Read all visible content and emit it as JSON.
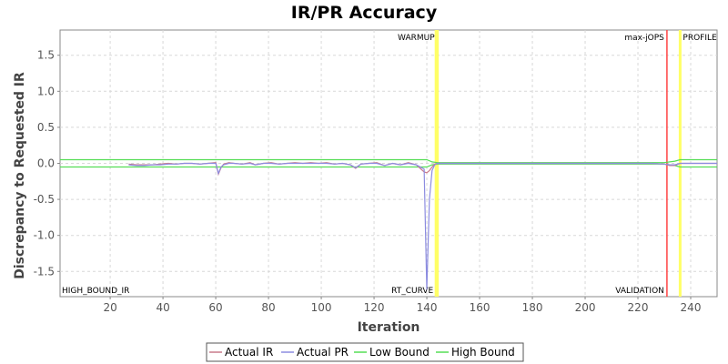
{
  "chart_data": {
    "type": "line",
    "title": "IR/PR Accuracy",
    "xlabel": "Iteration",
    "ylabel": "Discrepancy to Requested IR",
    "xlim": [
      1,
      250
    ],
    "ylim": [
      -1.85,
      1.85
    ],
    "xticks": [
      20,
      40,
      60,
      80,
      100,
      120,
      140,
      160,
      180,
      200,
      220,
      240
    ],
    "yticks": [
      1.5,
      1.0,
      0.5,
      0.0,
      -0.5,
      -1.0,
      -1.5
    ],
    "ytick_labels": [
      "1.5",
      "1.0",
      "0.5",
      "0.0",
      "-0.5",
      "-1.0",
      "-1.5"
    ],
    "grid": true,
    "legend_placement": "bottom",
    "series": [
      {
        "name": "Actual IR",
        "color": "#c97a8a",
        "x": [
          27,
          30,
          33,
          36,
          39,
          42,
          45,
          48,
          51,
          54,
          57,
          60,
          61,
          62,
          63,
          65,
          67,
          70,
          73,
          75,
          78,
          81,
          84,
          87,
          90,
          93,
          96,
          99,
          102,
          105,
          108,
          111,
          113,
          115,
          118,
          121,
          124,
          127,
          130,
          133,
          136,
          139,
          140,
          141,
          142,
          143,
          144,
          150,
          160,
          170,
          180,
          190,
          200,
          210,
          220,
          225,
          230,
          232,
          234,
          236,
          240,
          245,
          250
        ],
        "y": [
          -0.01,
          -0.02,
          -0.02,
          -0.02,
          -0.01,
          0.0,
          -0.01,
          0.0,
          0.0,
          -0.01,
          0.0,
          0.01,
          -0.15,
          -0.06,
          -0.01,
          0.01,
          0.0,
          -0.01,
          0.01,
          -0.02,
          0.0,
          0.01,
          -0.01,
          0.0,
          0.01,
          0.0,
          0.01,
          0.0,
          0.01,
          -0.01,
          0.0,
          -0.02,
          -0.07,
          -0.01,
          0.0,
          0.01,
          -0.03,
          0.0,
          -0.02,
          0.01,
          -0.02,
          -0.12,
          -0.13,
          -0.1,
          -0.05,
          -0.01,
          0.0,
          0.0,
          0.0,
          0.0,
          0.0,
          0.0,
          0.0,
          0.0,
          0.0,
          0.0,
          -0.01,
          -0.03,
          -0.03,
          0.0,
          0.0,
          0.0,
          0.0
        ]
      },
      {
        "name": "Actual PR",
        "color": "#8c8ce0",
        "x": [
          27,
          30,
          33,
          36,
          39,
          42,
          45,
          48,
          51,
          54,
          57,
          60,
          61,
          62,
          63,
          65,
          67,
          70,
          73,
          75,
          78,
          81,
          84,
          87,
          90,
          93,
          96,
          99,
          102,
          105,
          108,
          111,
          113,
          115,
          118,
          121,
          124,
          127,
          130,
          133,
          136,
          139,
          140,
          141,
          142,
          143,
          144,
          150,
          160,
          170,
          180,
          190,
          200,
          210,
          220,
          225,
          230,
          232,
          234,
          236,
          240,
          245,
          250
        ],
        "y": [
          -0.02,
          -0.03,
          -0.03,
          -0.02,
          -0.02,
          -0.01,
          -0.01,
          0.0,
          0.0,
          -0.01,
          0.0,
          0.0,
          -0.14,
          -0.05,
          -0.02,
          0.0,
          0.0,
          -0.01,
          0.0,
          -0.02,
          0.0,
          0.0,
          -0.01,
          0.0,
          0.0,
          0.0,
          0.0,
          0.0,
          0.0,
          -0.01,
          0.0,
          -0.02,
          -0.06,
          -0.01,
          0.0,
          0.0,
          -0.03,
          0.0,
          -0.02,
          0.0,
          -0.02,
          -0.08,
          -1.75,
          -0.5,
          -0.1,
          -0.02,
          0.0,
          0.0,
          0.0,
          0.0,
          0.0,
          0.0,
          0.0,
          0.0,
          0.0,
          0.0,
          -0.01,
          -0.02,
          -0.02,
          0.0,
          0.0,
          0.0,
          0.0
        ]
      },
      {
        "name": "Low Bound",
        "color": "#55dd55",
        "x": [
          1,
          140,
          142,
          144,
          230,
          234,
          236,
          250
        ],
        "y": [
          -0.05,
          -0.05,
          -0.02,
          -0.01,
          -0.01,
          -0.03,
          -0.05,
          -0.05
        ]
      },
      {
        "name": "High Bound",
        "color": "#55dd55",
        "x": [
          1,
          140,
          142,
          144,
          230,
          234,
          236,
          250
        ],
        "y": [
          0.05,
          0.05,
          0.02,
          0.01,
          0.01,
          0.03,
          0.05,
          0.05
        ]
      }
    ],
    "markers": [
      {
        "label": "WARMUP",
        "x": 144,
        "color": "#ffff66",
        "label_pos": "top"
      },
      {
        "label": "RT_CURVE",
        "x": 143.5,
        "color": "#ffff66",
        "label_pos": "bottom"
      },
      {
        "label": "max-jOPS",
        "x": 231,
        "color": "#ff4444",
        "label_pos": "top"
      },
      {
        "label": "VALIDATION",
        "x": 231,
        "color": "#ff4444",
        "label_pos": "bottom"
      },
      {
        "label": "PROFILE",
        "x": 236,
        "color": "#ffff66",
        "label_pos": "top"
      }
    ],
    "annotations": [
      {
        "label": "HIGH_BOUND_IR",
        "position": "bottom-left"
      }
    ]
  }
}
